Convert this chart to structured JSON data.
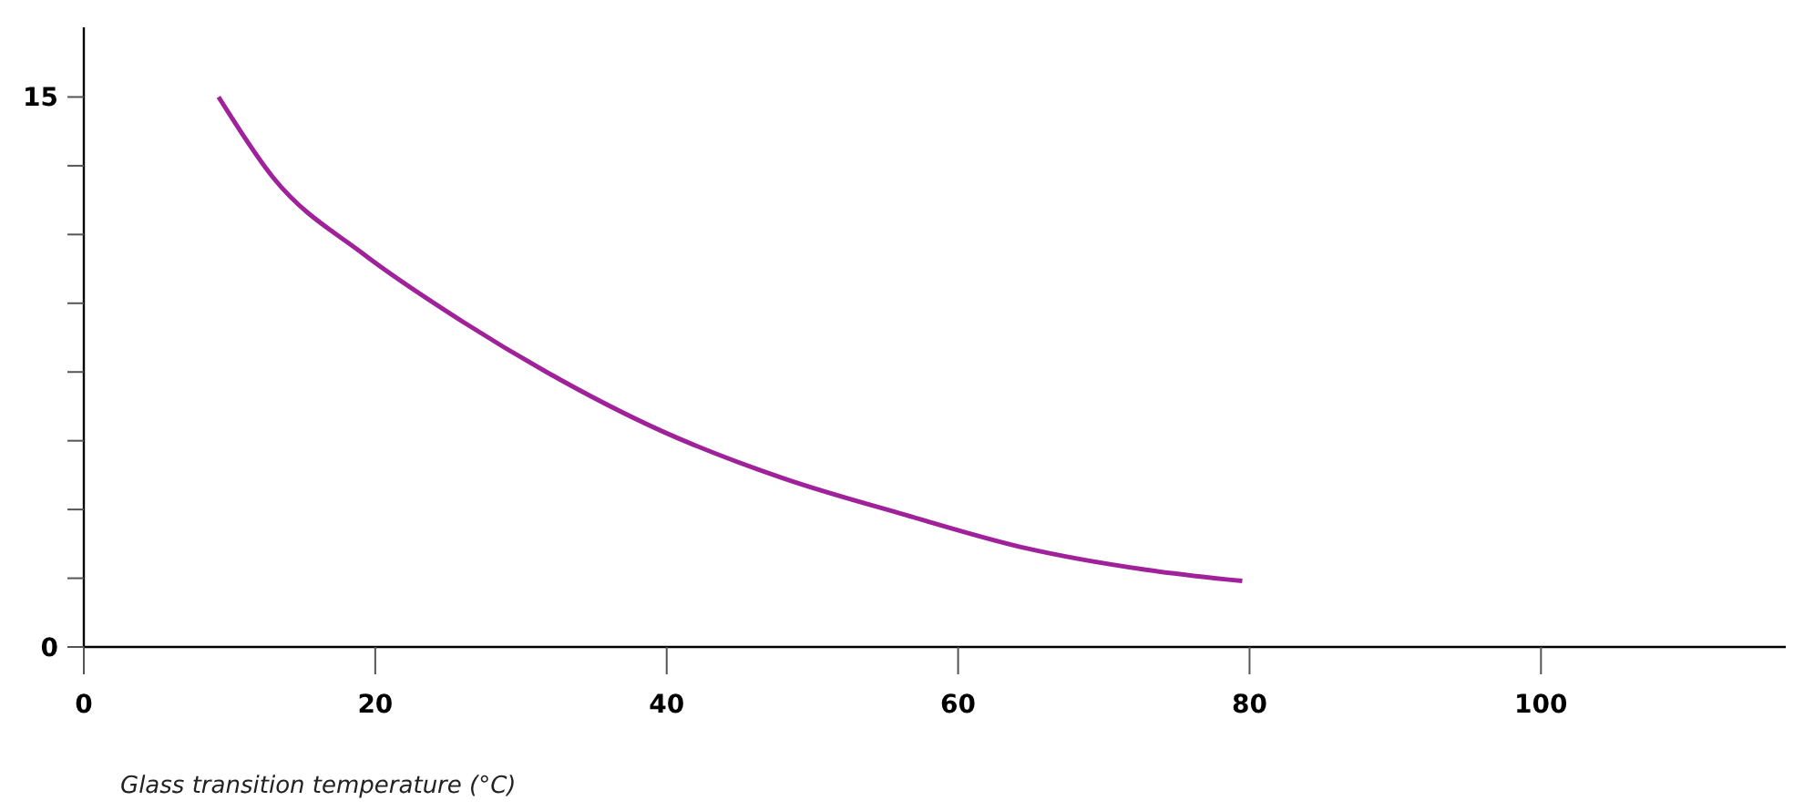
{
  "chart_data": {
    "type": "line",
    "xlabel": "Glass transition temperature (°C)",
    "x": [
      9.25,
      13,
      19.25,
      25.5,
      31.75,
      39.6,
      48,
      56.4,
      64.6,
      73,
      79.5
    ],
    "series": [
      {
        "color": "#a0229a",
        "values": [
          15,
          12.8,
          10.7,
          9.0,
          7.5,
          5.9,
          4.6,
          3.6,
          2.7,
          2.1,
          1.8
        ]
      }
    ],
    "xlim": [
      0,
      116.8
    ],
    "ylim": [
      0,
      16.9
    ],
    "xticks": [
      0,
      20,
      40,
      60,
      80,
      100
    ],
    "yticks": [
      0,
      {
        "value": 1.875,
        "label": null
      },
      {
        "value": 3.75,
        "label": null
      },
      {
        "value": 5.625,
        "label": null
      },
      {
        "value": 7.5,
        "label": null
      },
      {
        "value": 9.375,
        "label": null
      },
      {
        "value": 11.25,
        "label": null
      },
      {
        "value": 13.125,
        "label": null
      },
      15
    ],
    "grid": false,
    "marker": "none",
    "line_style": "solid"
  }
}
